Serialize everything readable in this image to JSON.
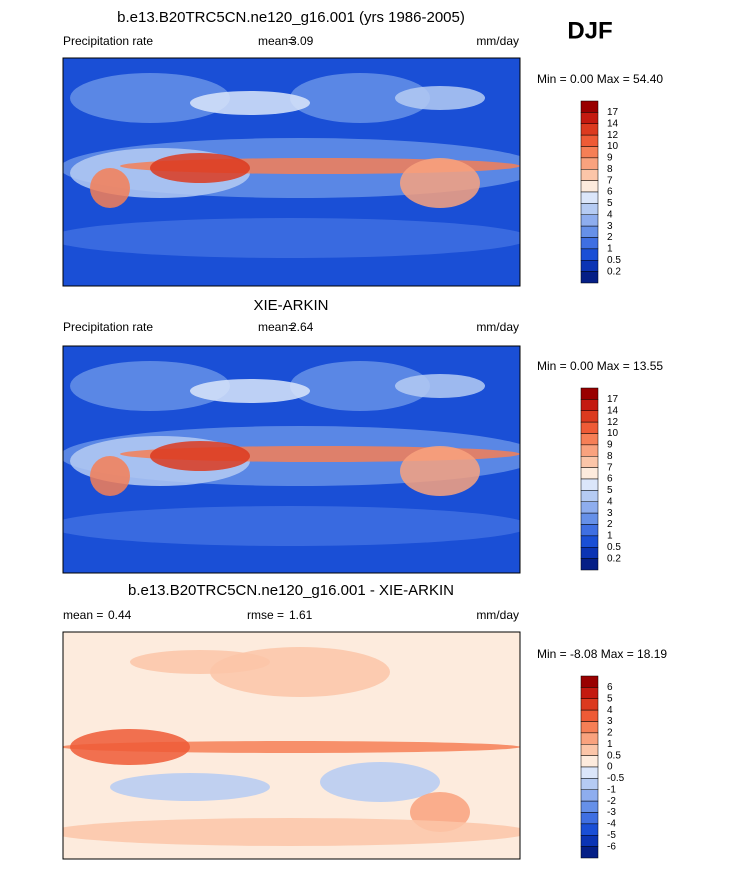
{
  "season": "DJF",
  "panels": [
    {
      "title": "b.e13.B20TRC5CN.ne120_g16.001 (yrs 1986-2005)",
      "left_label": "Precipitation rate",
      "stat1_label": "mean=",
      "stat1": "3.09",
      "units": "mm/day",
      "minmax": "Min =  0.00 Max =  54.40",
      "colorbar": {
        "labels": [
          "17",
          "14",
          "12",
          "10",
          "9",
          "8",
          "7",
          "6",
          "5",
          "4",
          "3",
          "2",
          "1",
          "0.5",
          "0.2"
        ],
        "colors": [
          "#990000",
          "#c41a10",
          "#dc3a1f",
          "#ee5b36",
          "#f67f56",
          "#f9a27e",
          "#fbc5a8",
          "#fdebdd",
          "#dbe6fa",
          "#b5cbf3",
          "#8eadee",
          "#6690e8",
          "#3f6fe2",
          "#1a4fd6",
          "#0b34b4",
          "#051f86"
        ]
      }
    },
    {
      "title": "XIE-ARKIN",
      "left_label": "Precipitation rate",
      "stat1_label": "mean=",
      "stat1": "2.64",
      "units": "mm/day",
      "minmax": "Min =  0.00 Max =  13.55",
      "colorbar": {
        "labels": [
          "17",
          "14",
          "12",
          "10",
          "9",
          "8",
          "7",
          "6",
          "5",
          "4",
          "3",
          "2",
          "1",
          "0.5",
          "0.2"
        ],
        "colors": [
          "#990000",
          "#c41a10",
          "#dc3a1f",
          "#ee5b36",
          "#f67f56",
          "#f9a27e",
          "#fbc5a8",
          "#fdebdd",
          "#dbe6fa",
          "#b5cbf3",
          "#8eadee",
          "#6690e8",
          "#3f6fe2",
          "#1a4fd6",
          "#0b34b4",
          "#051f86"
        ]
      }
    },
    {
      "title": "b.e13.B20TRC5CN.ne120_g16.001 - XIE-ARKIN",
      "left_label": "mean =",
      "stat0": "0.44",
      "stat1_label": "rmse =",
      "stat1": "1.61",
      "units": "mm/day",
      "minmax": "Min =  -8.08 Max =  18.19",
      "colorbar": {
        "labels": [
          "6",
          "5",
          "4",
          "3",
          "2",
          "1",
          "0.5",
          "0",
          "-0.5",
          "-1",
          "-2",
          "-3",
          "-4",
          "-5",
          "-6"
        ],
        "colors": [
          "#990000",
          "#c41a10",
          "#dc3a1f",
          "#ee5b36",
          "#f67f56",
          "#f9a27e",
          "#fbc5a8",
          "#fdebdd",
          "#dbe6fa",
          "#b5cbf3",
          "#8eadee",
          "#6690e8",
          "#3f6fe2",
          "#1a4fd6",
          "#0b34b4",
          "#051f86"
        ]
      }
    }
  ]
}
